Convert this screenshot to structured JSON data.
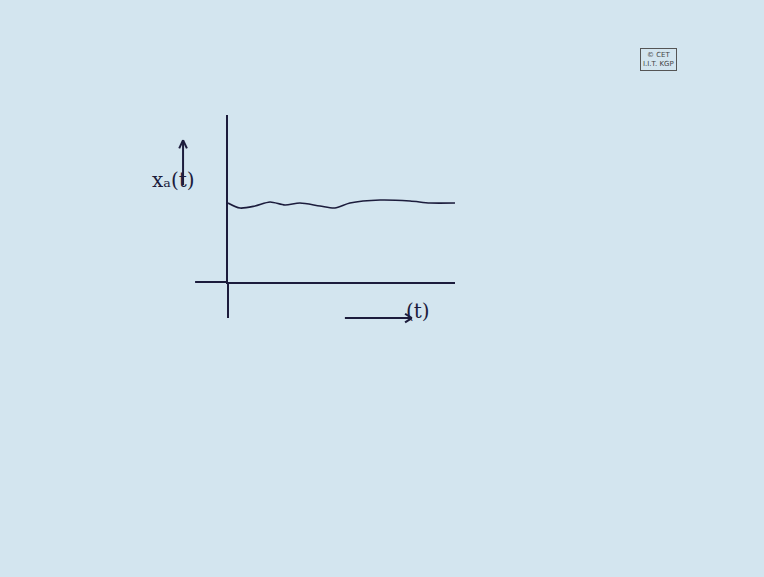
{
  "chart_data": {
    "type": "line",
    "x": [
      0,
      0.53,
      1.19,
      1.85,
      2.51,
      3.17,
      4.05,
      4.71,
      5.37,
      6.7,
      8.02,
      8.9,
      10
    ],
    "values": [
      4.73,
      4.43,
      4.55,
      4.79,
      4.61,
      4.73,
      4.55,
      4.43,
      4.73,
      4.91,
      4.85,
      4.73,
      4.73
    ],
    "xlim": [
      0,
      10
    ],
    "ylim": [
      0,
      10
    ],
    "xticks": [],
    "yticks": [],
    "tick_labels": false,
    "grid": false,
    "x_label": "(t)",
    "y_label": "xₐ(t)",
    "annotations": [
      "© CET",
      "I.I.T. KGP"
    ],
    "color": "#1c1c3c"
  }
}
